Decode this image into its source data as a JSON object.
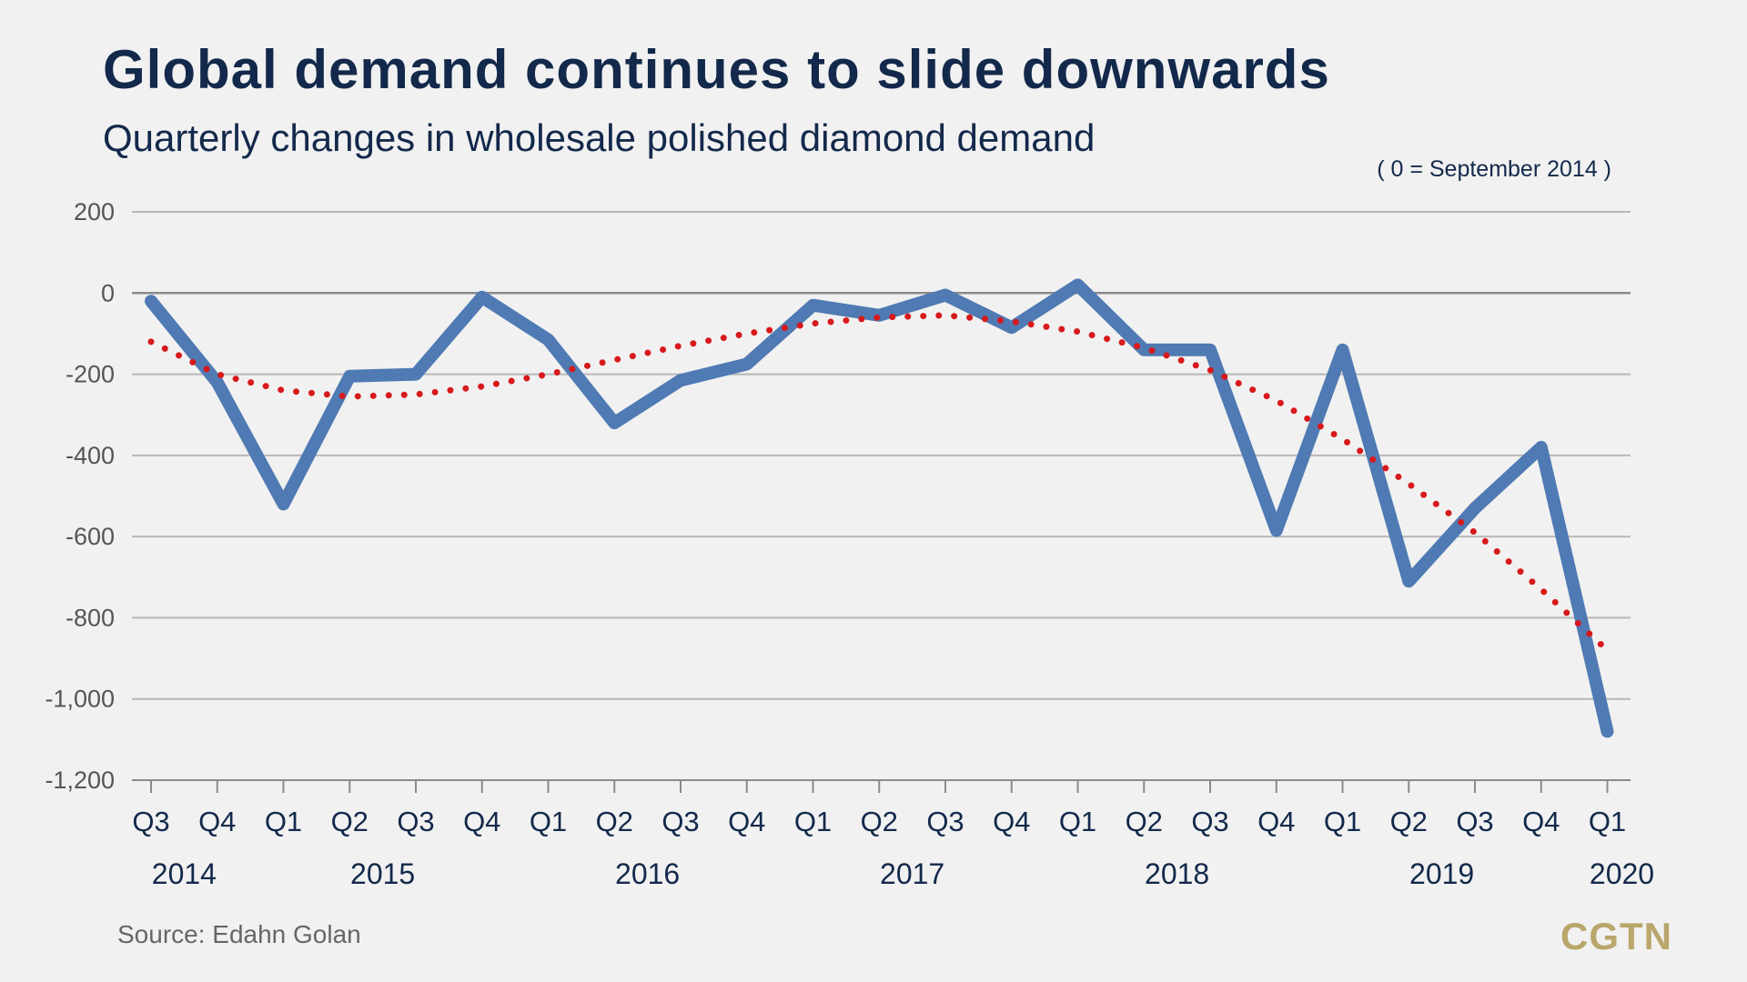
{
  "chart_data": {
    "type": "line",
    "title": "Global demand continues to slide downwards",
    "subtitle": "Quarterly changes in wholesale polished diamond demand",
    "note": "( 0 = September 2014 )",
    "source": "Source: Edahn Golan",
    "brand": "CGTN",
    "categories": [
      "Q3",
      "Q4",
      "Q1",
      "Q2",
      "Q3",
      "Q4",
      "Q1",
      "Q2",
      "Q3",
      "Q4",
      "Q1",
      "Q2",
      "Q3",
      "Q4",
      "Q1",
      "Q2",
      "Q3",
      "Q4",
      "Q1",
      "Q2",
      "Q3",
      "Q4",
      "Q1"
    ],
    "years": [
      {
        "label": "2014",
        "at": 0.5
      },
      {
        "label": "2015",
        "at": 3.5
      },
      {
        "label": "2016",
        "at": 7.5
      },
      {
        "label": "2017",
        "at": 11.5
      },
      {
        "label": "2018",
        "at": 15.5
      },
      {
        "label": "2019",
        "at": 19.5
      },
      {
        "label": "2020",
        "at": 22
      }
    ],
    "series": [
      {
        "values": [
          -20,
          -220,
          -520,
          -205,
          -200,
          -10,
          -115,
          -320,
          -215,
          -175,
          -30,
          -55,
          -5,
          -85,
          20,
          -140,
          -140,
          -585,
          -140,
          -710,
          -530,
          -380,
          -1080
        ],
        "color": "#4f7ab3",
        "style": "solid"
      },
      {
        "values": [
          -120,
          -200,
          -240,
          -255,
          -250,
          -230,
          -200,
          -165,
          -130,
          -100,
          -75,
          -60,
          -55,
          -70,
          -95,
          -135,
          -190,
          -265,
          -360,
          -470,
          -590,
          -730,
          -880
        ],
        "color": "#d7191c",
        "style": "dotted"
      }
    ],
    "yticks": [
      {
        "value": 200,
        "label": "200"
      },
      {
        "value": 0,
        "label": "0"
      },
      {
        "value": -200,
        "label": "-200"
      },
      {
        "value": -400,
        "label": "-400"
      },
      {
        "value": -600,
        "label": "-600"
      },
      {
        "value": -800,
        "label": "-800"
      },
      {
        "value": -1000,
        "label": "-1,000"
      },
      {
        "value": -1200,
        "label": "-1,200"
      }
    ],
    "ylim": [
      -1200,
      200
    ],
    "grid": true,
    "legend": "none"
  }
}
